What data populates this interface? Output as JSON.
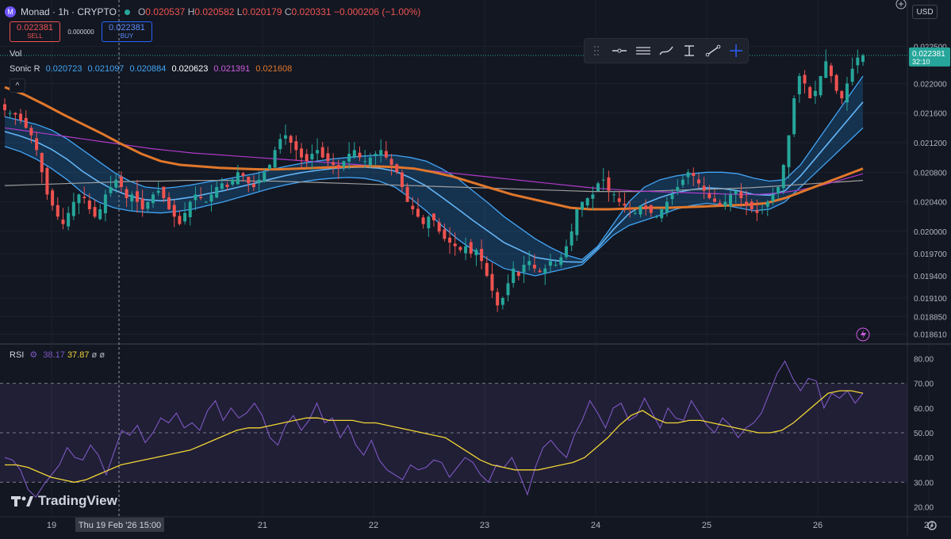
{
  "header": {
    "symbol": "Monad · 1h · CRYPTO",
    "logo_letter": "M",
    "ohlc": {
      "o_label": "O",
      "o": "0.020537",
      "h_label": "H",
      "h": "0.020582",
      "l_label": "L",
      "l": "0.020179",
      "c_label": "C",
      "c": "0.020331",
      "chg": "−0.000206 (−1.00%)"
    }
  },
  "trade": {
    "sell_price": "0.022381",
    "sell_label": "SELL",
    "spread": "0.000000",
    "buy_price": "0.022381",
    "buy_label": "BUY"
  },
  "indicators": {
    "vol_label": "Vol",
    "sonic_label": "Sonic R",
    "sonic_values": [
      "0.020723",
      "0.021097",
      "0.020884",
      "0.020623",
      "0.021391",
      "0.021608"
    ],
    "collapse_icon": "^"
  },
  "rsi": {
    "label": "RSI",
    "v1": "38.17",
    "v2": "37.87",
    "v3": "ø",
    "v4": "ø"
  },
  "currency": "USD",
  "brand": "TradingView",
  "price_box": {
    "price": "0.022381",
    "countdown": "32:10"
  },
  "crosshair_label": "Thu 19 Feb '26   15:00",
  "x_labels": [
    {
      "t": "19",
      "v": 0.0
    },
    {
      "t": "21",
      "v": 1.9
    },
    {
      "t": "22",
      "v": 2.9
    },
    {
      "t": "23",
      "v": 3.9
    },
    {
      "t": "24",
      "v": 4.9
    },
    {
      "t": "25",
      "v": 5.9
    },
    {
      "t": "26",
      "v": 6.9
    },
    {
      "t": "27",
      "v": 7.9
    }
  ],
  "colors": {
    "bg": "#131722",
    "up": "#26a69a",
    "down": "#ef5350",
    "band": "#2196f3",
    "orange": "#e0772b",
    "purple": "#b03acb",
    "grey": "#9e9e9e",
    "rsi": "#7e57c2",
    "rsi_ma": "#f2d535"
  },
  "chart_data": [
    {
      "type": "candlestick",
      "title": "Monad · 1h · CRYPTO",
      "y_ticks": [
        "0.022500",
        "0.022000",
        "0.021600",
        "0.021200",
        "0.020800",
        "0.020400",
        "0.020000",
        "0.019700",
        "0.019400",
        "0.019100",
        "0.018850",
        "0.018610"
      ],
      "ylim": [
        0.0185,
        0.0227
      ],
      "x_ticks": [
        "19",
        "21",
        "22",
        "23",
        "24",
        "25",
        "26",
        "27"
      ],
      "close": [
        0.02164,
        0.0216,
        0.02158,
        0.0215,
        0.0214,
        0.0213,
        0.0211,
        0.0208,
        0.0205,
        0.02035,
        0.0202,
        0.0201,
        0.02025,
        0.0204,
        0.0205,
        0.02045,
        0.0203,
        0.0202,
        0.0203,
        0.0205,
        0.0206,
        0.0207,
        0.0206,
        0.02045,
        0.0205,
        0.0204,
        0.0203,
        0.0204,
        0.0205,
        0.02055,
        0.02045,
        0.0203,
        0.0202,
        0.0201,
        0.02025,
        0.0204,
        0.0205,
        0.02045,
        0.0204,
        0.0205,
        0.0206,
        0.02065,
        0.0206,
        0.0207,
        0.0208,
        0.02075,
        0.02065,
        0.0206,
        0.0207,
        0.0208,
        0.0209,
        0.0211,
        0.02125,
        0.0213,
        0.0212,
        0.0211,
        0.021,
        0.02095,
        0.02105,
        0.0211,
        0.021,
        0.02095,
        0.0209,
        0.02085,
        0.02095,
        0.02105,
        0.0211,
        0.021,
        0.02095,
        0.021,
        0.02105,
        0.0211,
        0.021,
        0.0209,
        0.0208,
        0.0206,
        0.0204,
        0.0203,
        0.0202,
        0.0201,
        0.0202,
        0.02015,
        0.02,
        0.0199,
        0.01985,
        0.0198,
        0.01975,
        0.0198,
        0.0197,
        0.01975,
        0.0196,
        0.0194,
        0.0192,
        0.019,
        0.0191,
        0.0193,
        0.0195,
        0.0194,
        0.01955,
        0.0196,
        0.0195,
        0.01945,
        0.0195,
        0.0196,
        0.01955,
        0.01965,
        0.0198,
        0.02,
        0.0203,
        0.0204,
        0.02045,
        0.0205,
        0.02065,
        0.0207,
        0.02055,
        0.0205,
        0.0204,
        0.02035,
        0.0203,
        0.02025,
        0.02035,
        0.0203,
        0.02025,
        0.0202,
        0.0203,
        0.0204,
        0.0205,
        0.0206,
        0.0207,
        0.0208,
        0.02075,
        0.02065,
        0.02055,
        0.02045,
        0.0204,
        0.02035,
        0.0204,
        0.0205,
        0.02055,
        0.02045,
        0.02035,
        0.0203,
        0.02025,
        0.0203,
        0.0204,
        0.0205,
        0.0206,
        0.0209,
        0.0213,
        0.0218,
        0.0221,
        0.022,
        0.0218,
        0.0219,
        0.0221,
        0.0223,
        0.0221,
        0.0219,
        0.0218,
        0.022,
        0.0222,
        0.02235,
        0.02238
      ],
      "sonic_upper": [
        0.02155,
        0.0215,
        0.02145,
        0.02137,
        0.02125,
        0.0211,
        0.02095,
        0.0208,
        0.02068,
        0.0206,
        0.02058,
        0.0206,
        0.02063,
        0.02067,
        0.0207,
        0.02074,
        0.02078,
        0.02083,
        0.02088,
        0.02092,
        0.02095,
        0.02098,
        0.021,
        0.02102,
        0.02103,
        0.02103,
        0.021,
        0.02095,
        0.02085,
        0.02072,
        0.02055,
        0.02038,
        0.0202,
        0.02005,
        0.0199,
        0.01978,
        0.01968,
        0.01962,
        0.0198,
        0.0201,
        0.0204,
        0.0206,
        0.0207,
        0.02075,
        0.02078,
        0.0208,
        0.0208,
        0.02078,
        0.02072,
        0.02068,
        0.0207,
        0.0209,
        0.0212,
        0.0215,
        0.0218,
        0.0221
      ],
      "sonic_lower": [
        0.02115,
        0.02108,
        0.02098,
        0.02085,
        0.0207,
        0.02052,
        0.0204,
        0.02032,
        0.02028,
        0.02026,
        0.02025,
        0.02027,
        0.0203,
        0.02035,
        0.0204,
        0.02046,
        0.02052,
        0.02058,
        0.02063,
        0.02067,
        0.0207,
        0.02072,
        0.02073,
        0.02072,
        0.02068,
        0.0206,
        0.02045,
        0.02028,
        0.02008,
        0.0199,
        0.01975,
        0.01962,
        0.0195,
        0.01945,
        0.0194,
        0.01945,
        0.0195,
        0.01955,
        0.01975,
        0.01995,
        0.02008,
        0.02015,
        0.02022,
        0.0203,
        0.02035,
        0.02038,
        0.02036,
        0.02032,
        0.02028,
        0.0203,
        0.0204,
        0.0206,
        0.0208,
        0.021,
        0.0212,
        0.0214
      ],
      "orange_ma": [
        0.02195,
        0.02185,
        0.02172,
        0.02158,
        0.02145,
        0.02132,
        0.02118,
        0.02105,
        0.02095,
        0.0209,
        0.02088,
        0.02086,
        0.02085,
        0.02084,
        0.02084,
        0.02085,
        0.02086,
        0.02087,
        0.02088,
        0.02088,
        0.02087,
        0.02085,
        0.0208,
        0.02074,
        0.02066,
        0.02058,
        0.0205,
        0.02044,
        0.02038,
        0.02032,
        0.0203,
        0.0203,
        0.02031,
        0.02032,
        0.02032,
        0.02033,
        0.02034,
        0.02035,
        0.02036,
        0.02038,
        0.02045,
        0.02055,
        0.02065,
        0.02075,
        0.02085
      ],
      "purple_ma": [
        0.0214,
        0.02136,
        0.02132,
        0.02128,
        0.02124,
        0.0212,
        0.02116,
        0.02112,
        0.02109,
        0.02106,
        0.02104,
        0.02102,
        0.021,
        0.02098,
        0.02096,
        0.02094,
        0.02092,
        0.0209,
        0.02088,
        0.02086,
        0.02083,
        0.0208,
        0.02077,
        0.02074,
        0.02071,
        0.02068,
        0.02065,
        0.02062,
        0.02059,
        0.02057,
        0.02055,
        0.02054,
        0.02053,
        0.02052,
        0.02051,
        0.0205,
        0.0205,
        0.02052,
        0.02056,
        0.02062,
        0.0207,
        0.02078
      ],
      "grey_ma": [
        0.02062,
        0.02063,
        0.02064,
        0.02065,
        0.02066,
        0.02067,
        0.02068,
        0.02068,
        0.02069,
        0.02069,
        0.02069,
        0.02068,
        0.02068,
        0.02067,
        0.02066,
        0.02065,
        0.02064,
        0.02063,
        0.02062,
        0.02061,
        0.0206,
        0.02059,
        0.02058,
        0.02057,
        0.02056,
        0.02055,
        0.02054,
        0.02054,
        0.02054,
        0.02055,
        0.02056,
        0.02057,
        0.02058,
        0.02059,
        0.02061,
        0.02063,
        0.02065,
        0.02067,
        0.02069
      ]
    },
    {
      "type": "line",
      "title": "RSI",
      "y_ticks": [
        "80.00",
        "70.00",
        "60.00",
        "50.00",
        "40.00",
        "30.00",
        "20.00"
      ],
      "ylim": [
        16,
        84
      ],
      "band": [
        30,
        70
      ],
      "midline": 50,
      "series": [
        {
          "name": "RSI",
          "values": [
            40,
            39,
            35,
            27,
            24,
            29,
            33,
            37,
            44,
            40,
            39,
            45,
            41,
            33,
            42,
            51,
            49,
            53,
            46,
            50,
            56,
            54,
            58,
            52,
            54,
            51,
            59,
            63,
            55,
            60,
            56,
            58,
            62,
            57,
            48,
            45,
            53,
            57,
            51,
            55,
            62,
            54,
            56,
            48,
            53,
            45,
            41,
            47,
            39,
            35,
            33,
            31,
            37,
            35,
            36,
            39,
            38,
            32,
            36,
            40,
            38,
            33,
            30,
            37,
            36,
            40,
            33,
            25,
            36,
            44,
            47,
            43,
            40,
            49,
            55,
            63,
            58,
            52,
            60,
            62,
            55,
            57,
            64,
            58,
            52,
            60,
            56,
            55,
            63,
            58,
            53,
            50,
            56,
            53,
            48,
            52,
            54,
            58,
            66,
            74,
            79,
            72,
            67,
            72,
            71,
            60,
            66,
            64,
            67,
            62,
            66
          ]
        },
        {
          "name": "RSI MA",
          "values": [
            37,
            37,
            36,
            34,
            32,
            31,
            30,
            31,
            33,
            35,
            37,
            38,
            39,
            40,
            41,
            42,
            43,
            45,
            47,
            49,
            51,
            52,
            52,
            53,
            54,
            55,
            56,
            56,
            55,
            55,
            55,
            54,
            54,
            53,
            52,
            51,
            50,
            49,
            48,
            45,
            42,
            39,
            37,
            36,
            35,
            35,
            35,
            36,
            37,
            38,
            40,
            44,
            48,
            53,
            57,
            59,
            56,
            54,
            54,
            55,
            55,
            54,
            53,
            52,
            51,
            50,
            50,
            51,
            54,
            58,
            62,
            66,
            67,
            67,
            66
          ]
        }
      ]
    }
  ]
}
